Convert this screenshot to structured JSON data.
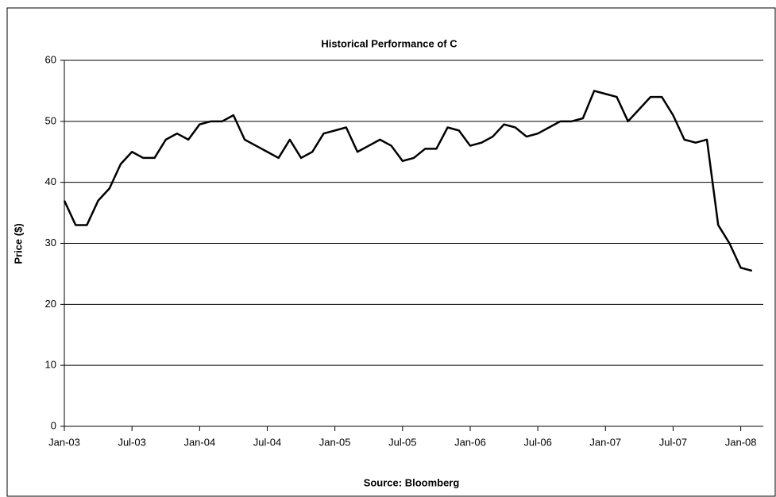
{
  "chart_data": {
    "type": "line",
    "title": "Historical Performance of C",
    "y_label": "Price ($)",
    "x_label": "Source: Bloomberg",
    "x": [
      "2003-01",
      "2003-02",
      "2003-03",
      "2003-04",
      "2003-05",
      "2003-06",
      "2003-07",
      "2003-08",
      "2003-09",
      "2003-10",
      "2003-11",
      "2003-12",
      "2004-01",
      "2004-02",
      "2004-03",
      "2004-04",
      "2004-05",
      "2004-06",
      "2004-07",
      "2004-08",
      "2004-09",
      "2004-10",
      "2004-11",
      "2004-12",
      "2005-01",
      "2005-02",
      "2005-03",
      "2005-04",
      "2005-05",
      "2005-06",
      "2005-07",
      "2005-08",
      "2005-09",
      "2005-10",
      "2005-11",
      "2005-12",
      "2006-01",
      "2006-02",
      "2006-03",
      "2006-04",
      "2006-05",
      "2006-06",
      "2006-07",
      "2006-08",
      "2006-09",
      "2006-10",
      "2006-11",
      "2006-12",
      "2007-01",
      "2007-02",
      "2007-03",
      "2007-04",
      "2007-05",
      "2007-06",
      "2007-07",
      "2007-08",
      "2007-09",
      "2007-10",
      "2007-11",
      "2007-12",
      "2008-01",
      "2008-02"
    ],
    "series": [
      {
        "name": "C",
        "color": "#000000",
        "values": [
          37,
          33,
          33,
          37,
          39,
          43,
          45,
          44,
          44,
          47,
          48,
          47,
          49.5,
          50,
          50,
          51,
          47,
          46,
          45,
          44,
          47,
          44,
          45,
          48,
          48.5,
          49,
          45,
          46,
          47,
          46,
          43.5,
          44,
          45.5,
          45.5,
          49,
          48.5,
          46,
          46.5,
          47.5,
          49.5,
          49,
          47.5,
          48,
          49,
          50,
          50,
          50.5,
          55,
          54.5,
          54,
          50,
          52,
          54,
          54,
          51,
          47,
          46.5,
          47,
          33,
          30,
          26,
          25.5
        ]
      }
    ],
    "xlim": [
      "2003-01",
      "2008-03"
    ],
    "xticks": [
      {
        "value": "2003-01",
        "label": "Jan-03"
      },
      {
        "value": "2003-07",
        "label": "Jul-03"
      },
      {
        "value": "2004-01",
        "label": "Jan-04"
      },
      {
        "value": "2004-07",
        "label": "Jul-04"
      },
      {
        "value": "2005-01",
        "label": "Jan-05"
      },
      {
        "value": "2005-07",
        "label": "Jul-05"
      },
      {
        "value": "2006-01",
        "label": "Jan-06"
      },
      {
        "value": "2006-07",
        "label": "Jul-06"
      },
      {
        "value": "2007-01",
        "label": "Jan-07"
      },
      {
        "value": "2007-07",
        "label": "Jul-07"
      },
      {
        "value": "2008-01",
        "label": "Jan-08"
      }
    ],
    "ylim": [
      0,
      60
    ],
    "yticks": [
      0,
      10,
      20,
      30,
      40,
      50,
      60
    ],
    "grid": true
  }
}
